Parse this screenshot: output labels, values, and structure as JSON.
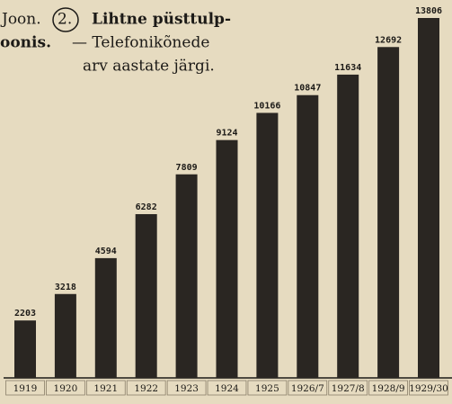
{
  "chart_data": {
    "type": "bar",
    "title_parts": [
      "Joon.",
      "2.",
      "Lihtne püsttulp-",
      "oonis.",
      "— Telefonikõnede",
      "arv aastate järgi."
    ],
    "categories": [
      "1919",
      "1920",
      "1921",
      "1922",
      "1923",
      "1924",
      "1925",
      "1926/7",
      "1927/8",
      "1928/9",
      "1929/30"
    ],
    "values": [
      2203,
      3218,
      4594,
      6282,
      7809,
      9124,
      10166,
      10847,
      11634,
      12692,
      13806
    ],
    "color": "#2a2622"
  }
}
